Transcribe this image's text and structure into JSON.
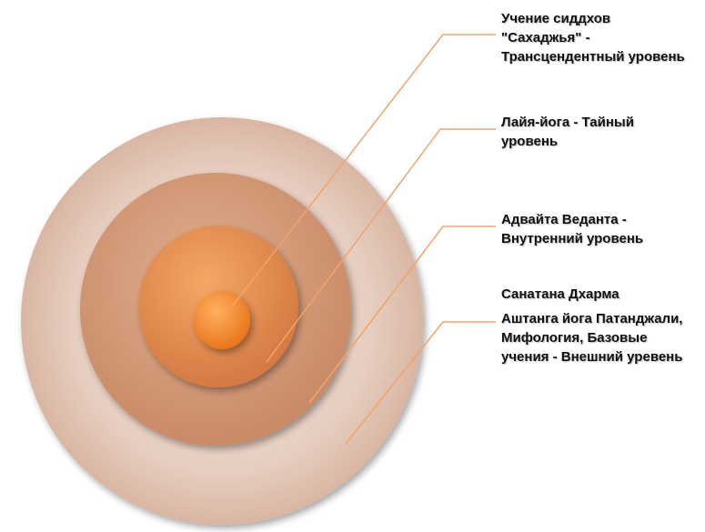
{
  "diagram": {
    "colors": {
      "ring1": "#e2c4b3",
      "ring2": "#d29673",
      "ring3": "#e48c52",
      "ring4": "#f08b2e",
      "leader": "#f0a060"
    },
    "levels": [
      {
        "lines": [
          "Учение сиддхов",
          "\"Сахаджья\" -",
          "Трансцендентный уровень"
        ]
      },
      {
        "lines": [
          "Лайя-йога - Тайный",
          "уровень"
        ]
      },
      {
        "lines": [
          "Адвайта Веданта -",
          "Внутренний уровень"
        ]
      },
      {
        "lines": [
          "Санатана Дхарма"
        ]
      },
      {
        "lines": [
          "Аштанга йога Патанджали,",
          "Мифология, Базовые",
          "учения - Внешний уревень"
        ]
      }
    ]
  }
}
